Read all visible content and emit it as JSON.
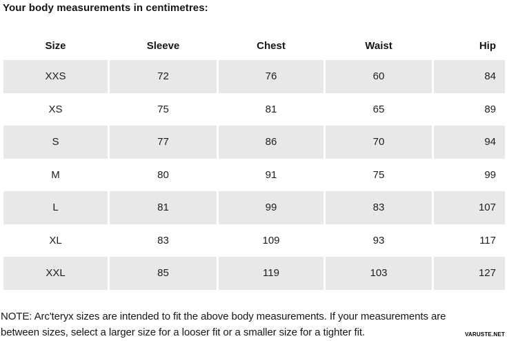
{
  "title": "Your body measurements in centimetres:",
  "table": {
    "columns": [
      "Size",
      "Sleeve",
      "Chest",
      "Waist",
      "Hip"
    ],
    "rows": [
      [
        "XXS",
        "72",
        "76",
        "60",
        "84"
      ],
      [
        "XS",
        "75",
        "81",
        "65",
        "89"
      ],
      [
        "S",
        "77",
        "86",
        "70",
        "94"
      ],
      [
        "M",
        "80",
        "91",
        "75",
        "99"
      ],
      [
        "L",
        "81",
        "99",
        "83",
        "107"
      ],
      [
        "XL",
        "83",
        "109",
        "93",
        "117"
      ],
      [
        "XXL",
        "85",
        "119",
        "103",
        "127"
      ]
    ]
  },
  "note": {
    "lines": [
      "NOTE: Arc'teryx sizes are intended to fit the above body measurements. If your measurements are",
      "between sizes, select a larger size for a looser fit or a smaller size for a tighter fit."
    ]
  },
  "watermark": "VARUSTE.NET",
  "colors": {
    "row_alt_bg": "#e8e8e8",
    "text": "#1d1d1d"
  }
}
